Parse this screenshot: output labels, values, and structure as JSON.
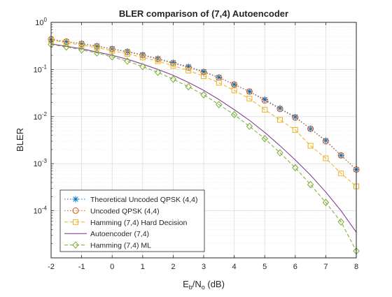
{
  "chart_data": {
    "type": "line",
    "title": "BLER comparison of (7,4) Autoencoder",
    "xlabel": {
      "base": "E",
      "sub1": "b",
      "mid": "/N",
      "sub2": "o",
      "tail": " (dB)"
    },
    "ylabel": "BLER",
    "xlim": [
      -2,
      8
    ],
    "ylim": [
      1e-05,
      1
    ],
    "yscale": "log",
    "grid": true,
    "legend_position": "bottom-left",
    "x_ticks": [
      "-2",
      "-1",
      "0",
      "1",
      "2",
      "3",
      "4",
      "5",
      "6",
      "7",
      "8"
    ],
    "y_ticks": [
      {
        "base": "10",
        "exp": "0",
        "value": 1
      },
      {
        "base": "10",
        "exp": "-1",
        "value": 0.1
      },
      {
        "base": "10",
        "exp": "-2",
        "value": 0.01
      },
      {
        "base": "10",
        "exp": "-3",
        "value": 0.001
      },
      {
        "base": "10",
        "exp": "-4",
        "value": 0.0001
      }
    ],
    "series": [
      {
        "name": "Theoretical Uncoded QPSK (4,4)",
        "color": "#0072BD",
        "line": "dotted",
        "marker": "asterisk",
        "x": [
          -2,
          -1.5,
          -1,
          -0.5,
          0,
          0.5,
          1,
          1.5,
          2,
          2.5,
          3,
          3.5,
          4,
          4.5,
          5,
          5.5,
          6,
          6.5,
          7,
          7.5,
          8
        ],
        "y": [
          0.43,
          0.39,
          0.355,
          0.315,
          0.275,
          0.24,
          0.205,
          0.17,
          0.14,
          0.115,
          0.09,
          0.068,
          0.048,
          0.034,
          0.023,
          0.015,
          0.0098,
          0.0055,
          0.0031,
          0.0015,
          0.00075
        ]
      },
      {
        "name": "Uncoded QPSK (4,4)",
        "color": "#D95319",
        "line": "dotted",
        "marker": "circle",
        "x": [
          -2,
          -1.5,
          -1,
          -0.5,
          0,
          0.5,
          1,
          1.5,
          2,
          2.5,
          3,
          3.5,
          4,
          4.5,
          5,
          5.5,
          6,
          6.5,
          7,
          7.5,
          8
        ],
        "y": [
          0.44,
          0.39,
          0.35,
          0.31,
          0.27,
          0.235,
          0.2,
          0.165,
          0.135,
          0.11,
          0.088,
          0.067,
          0.048,
          0.034,
          0.022,
          0.0145,
          0.0095,
          0.0055,
          0.003,
          0.0015,
          0.00075
        ]
      },
      {
        "name": "Hamming (7,4) Hard Decision",
        "color": "#EDB120",
        "line": "dashed",
        "marker": "square",
        "x": [
          -2,
          -1.5,
          -1,
          -0.5,
          0,
          0.5,
          1,
          1.5,
          2,
          2.5,
          3,
          3.5,
          4,
          4.5,
          5,
          5.5,
          6,
          6.5,
          7,
          7.5,
          8
        ],
        "y": [
          0.42,
          0.37,
          0.33,
          0.29,
          0.25,
          0.215,
          0.18,
          0.15,
          0.12,
          0.095,
          0.072,
          0.052,
          0.036,
          0.024,
          0.014,
          0.0085,
          0.0052,
          0.0024,
          0.0013,
          0.00062,
          0.00033
        ]
      },
      {
        "name": "Autoencoder (7,4)",
        "color": "#7E2F8E",
        "line": "solid",
        "marker": "none",
        "x": [
          -2,
          -1.5,
          -1,
          -0.5,
          0,
          0.5,
          1,
          1.5,
          2,
          2.5,
          3,
          3.5,
          4,
          4.5,
          5,
          5.5,
          6,
          6.5,
          7,
          7.5,
          8
        ],
        "y": [
          0.35,
          0.31,
          0.275,
          0.235,
          0.2,
          0.165,
          0.13,
          0.1,
          0.075,
          0.053,
          0.036,
          0.023,
          0.014,
          0.0083,
          0.0046,
          0.0024,
          0.0012,
          0.00057,
          0.00025,
          0.0001,
          3.5e-05
        ]
      },
      {
        "name": "Hamming (7,4) ML",
        "color": "#77AC30",
        "line": "dashed",
        "marker": "diamond",
        "x": [
          -2,
          -1.5,
          -1,
          -0.5,
          0,
          0.5,
          1,
          1.5,
          2,
          2.5,
          3,
          3.5,
          4,
          4.5,
          5,
          5.5,
          6,
          6.5,
          7,
          7.5,
          8
        ],
        "y": [
          0.34,
          0.3,
          0.26,
          0.225,
          0.185,
          0.15,
          0.115,
          0.087,
          0.062,
          0.043,
          0.029,
          0.018,
          0.011,
          0.0062,
          0.0034,
          0.0017,
          0.00082,
          0.00036,
          0.00015,
          5.8e-05,
          1.4e-05
        ]
      }
    ]
  }
}
